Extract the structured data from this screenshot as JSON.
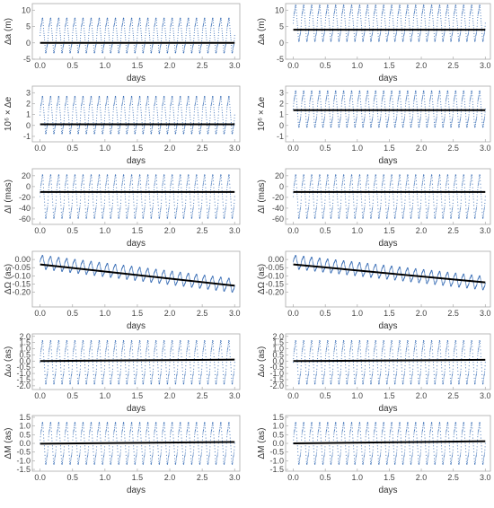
{
  "figure": {
    "description_colors": {
      "series": "#3b6fb6",
      "trend": "#000000",
      "frame": "#aaaaaa",
      "text": "#444444"
    }
  },
  "chart_data": [
    {
      "type": "scatter",
      "panel": "a-left",
      "xlabel": "days",
      "ylabel": "Δa (m)",
      "xlim": [
        -0.12,
        3.08
      ],
      "ylim": [
        -5,
        12
      ],
      "xticks": [
        "0.0",
        "0.5",
        "1.0",
        "1.5",
        "2.0",
        "2.5",
        "3.0"
      ],
      "yticks": [
        -5,
        0,
        5,
        10
      ],
      "osc": {
        "min": -3.5,
        "max": 8.0,
        "cycles": 24
      },
      "trend": {
        "x": [
          0.0,
          3.0
        ],
        "y": [
          0.0,
          0.0
        ]
      }
    },
    {
      "type": "scatter",
      "panel": "a-right",
      "xlabel": "days",
      "ylabel": "Δa (m)",
      "xlim": [
        -0.12,
        3.08
      ],
      "ylim": [
        -5,
        12
      ],
      "xticks": [
        "0.0",
        "0.5",
        "1.0",
        "1.5",
        "2.0",
        "2.5",
        "3.0"
      ],
      "yticks": [
        -5,
        0,
        5,
        10
      ],
      "osc": {
        "min": 0.0,
        "max": 12.0,
        "cycles": 24
      },
      "trend": {
        "x": [
          0.0,
          3.0
        ],
        "y": [
          4.0,
          4.0
        ]
      }
    },
    {
      "type": "scatter",
      "panel": "e-left",
      "xlabel": "days",
      "ylabel": "10⁶ × Δe",
      "xlim": [
        -0.12,
        3.08
      ],
      "ylim": [
        -1.5,
        3.6
      ],
      "xticks": [
        "0.0",
        "0.5",
        "1.0",
        "1.5",
        "2.0",
        "2.5",
        "3.0"
      ],
      "yticks": [
        -1,
        0,
        1,
        2,
        3
      ],
      "osc": {
        "min": -0.9,
        "max": 2.8,
        "cycles": 24
      },
      "trend": {
        "x": [
          0.0,
          3.0
        ],
        "y": [
          0.1,
          0.1
        ]
      }
    },
    {
      "type": "scatter",
      "panel": "e-right",
      "xlabel": "days",
      "ylabel": "10⁶ × Δe",
      "xlim": [
        -0.12,
        3.08
      ],
      "ylim": [
        -1.5,
        3.6
      ],
      "xticks": [
        "0.0",
        "0.5",
        "1.0",
        "1.5",
        "2.0",
        "2.5",
        "3.0"
      ],
      "yticks": [
        -1,
        0,
        1,
        2,
        3
      ],
      "osc": {
        "min": -0.3,
        "max": 3.3,
        "cycles": 24
      },
      "trend": {
        "x": [
          0.0,
          3.0
        ],
        "y": [
          1.4,
          1.4
        ]
      }
    },
    {
      "type": "scatter",
      "panel": "I-left",
      "xlabel": "days",
      "ylabel": "ΔI (mas)",
      "xlim": [
        -0.12,
        3.08
      ],
      "ylim": [
        -70,
        33
      ],
      "xticks": [
        "0.0",
        "0.5",
        "1.0",
        "1.5",
        "2.0",
        "2.5",
        "3.0"
      ],
      "yticks": [
        -60,
        -40,
        -20,
        0,
        20
      ],
      "osc": {
        "min": -62,
        "max": 25,
        "cycles": 24
      },
      "trend": {
        "x": [
          0.0,
          3.0
        ],
        "y": [
          -10,
          -10
        ]
      }
    },
    {
      "type": "scatter",
      "panel": "I-right",
      "xlabel": "days",
      "ylabel": "ΔI (mas)",
      "xlim": [
        -0.12,
        3.08
      ],
      "ylim": [
        -70,
        33
      ],
      "xticks": [
        "0.0",
        "0.5",
        "1.0",
        "1.5",
        "2.0",
        "2.5",
        "3.0"
      ],
      "yticks": [
        -60,
        -40,
        -20,
        0,
        20
      ],
      "osc": {
        "min": -62,
        "max": 25,
        "cycles": 24
      },
      "trend": {
        "x": [
          0.0,
          3.0
        ],
        "y": [
          -10,
          -10
        ]
      }
    },
    {
      "type": "scatter",
      "panel": "Omega-left",
      "xlabel": "days",
      "ylabel": "ΔΩ (as)",
      "xlim": [
        -0.12,
        3.08
      ],
      "ylim": [
        -0.29,
        0.05
      ],
      "xticks": [
        "0.0",
        "0.5",
        "1.0",
        "1.5",
        "2.0",
        "2.5",
        "3.0"
      ],
      "yticks": [
        "0.00",
        "-0.05",
        "-0.10",
        "-0.15",
        "-0.20"
      ],
      "ytickvals": [
        0.0,
        -0.05,
        -0.1,
        -0.15,
        -0.2
      ],
      "osc": {
        "min": -0.06,
        "max": 0.03,
        "cycles": 24,
        "drift": -0.145
      },
      "trend": {
        "x": [
          0.0,
          3.0
        ],
        "y": [
          -0.03,
          -0.16
        ]
      }
    },
    {
      "type": "scatter",
      "panel": "Omega-right",
      "xlabel": "days",
      "ylabel": "ΔΩ (as)",
      "xlim": [
        -0.12,
        3.08
      ],
      "ylim": [
        -0.29,
        0.05
      ],
      "xticks": [
        "0.0",
        "0.5",
        "1.0",
        "1.5",
        "2.0",
        "2.5",
        "3.0"
      ],
      "yticks": [
        "0.00",
        "-0.05",
        "-0.10",
        "-0.15",
        "-0.20"
      ],
      "ytickvals": [
        0.0,
        -0.05,
        -0.1,
        -0.15,
        -0.2
      ],
      "osc": {
        "min": -0.06,
        "max": 0.03,
        "cycles": 24,
        "drift": -0.13
      },
      "trend": {
        "x": [
          0.0,
          3.0
        ],
        "y": [
          -0.03,
          -0.14
        ]
      }
    },
    {
      "type": "scatter",
      "panel": "omega-left",
      "xlabel": "days",
      "ylabel": "Δω (as)",
      "xlim": [
        -0.12,
        3.08
      ],
      "ylim": [
        -2.3,
        2.2
      ],
      "xticks": [
        "0.0",
        "0.5",
        "1.0",
        "1.5",
        "2.0",
        "2.5",
        "3.0"
      ],
      "yticks": [
        "-2.0",
        "-1.5",
        "-1.0",
        "-0.5",
        "0.0",
        "0.5",
        "1.0",
        "1.5",
        "2.0"
      ],
      "ytickvals": [
        -2.0,
        -1.5,
        -1.0,
        -0.5,
        0.0,
        0.5,
        1.0,
        1.5,
        2.0
      ],
      "osc": {
        "min": -2.0,
        "max": 1.8,
        "cycles": 24
      },
      "trend": {
        "x": [
          0.0,
          3.0
        ],
        "y": [
          0.0,
          0.12
        ]
      }
    },
    {
      "type": "scatter",
      "panel": "omega-right",
      "xlabel": "days",
      "ylabel": "Δω (as)",
      "xlim": [
        -0.12,
        3.08
      ],
      "ylim": [
        -2.3,
        2.2
      ],
      "xticks": [
        "0.0",
        "0.5",
        "1.0",
        "1.5",
        "2.0",
        "2.5",
        "3.0"
      ],
      "yticks": [
        "-2.0",
        "-1.5",
        "-1.0",
        "-0.5",
        "0.0",
        "0.5",
        "1.0",
        "1.5",
        "2.0"
      ],
      "ytickvals": [
        -2.0,
        -1.5,
        -1.0,
        -0.5,
        0.0,
        0.5,
        1.0,
        1.5,
        2.0
      ],
      "osc": {
        "min": -2.0,
        "max": 1.8,
        "cycles": 24
      },
      "trend": {
        "x": [
          0.0,
          3.0
        ],
        "y": [
          0.0,
          0.1
        ]
      }
    },
    {
      "type": "scatter",
      "panel": "M-left",
      "xlabel": "days",
      "ylabel": "ΔM (as)",
      "xlim": [
        -0.12,
        3.08
      ],
      "ylim": [
        -1.6,
        1.6
      ],
      "xticks": [
        "0.0",
        "0.5",
        "1.0",
        "1.5",
        "2.0",
        "2.5",
        "3.0"
      ],
      "yticks": [
        "-1.5",
        "-1.0",
        "-0.5",
        "0.0",
        "0.5",
        "1.0",
        "1.5"
      ],
      "ytickvals": [
        -1.5,
        -1.0,
        -0.5,
        0.0,
        0.5,
        1.0,
        1.5
      ],
      "osc": {
        "min": -1.3,
        "max": 1.3,
        "cycles": 24
      },
      "trend": {
        "x": [
          0.0,
          3.0
        ],
        "y": [
          -0.02,
          0.08
        ]
      }
    },
    {
      "type": "scatter",
      "panel": "M-right",
      "xlabel": "days",
      "ylabel": "ΔM (as)",
      "xlim": [
        -0.12,
        3.08
      ],
      "ylim": [
        -1.6,
        1.6
      ],
      "xticks": [
        "0.0",
        "0.5",
        "1.0",
        "1.5",
        "2.0",
        "2.5",
        "3.0"
      ],
      "yticks": [
        "-1.5",
        "-1.0",
        "-0.5",
        "0.0",
        "0.5",
        "1.0",
        "1.5"
      ],
      "ytickvals": [
        -1.5,
        -1.0,
        -0.5,
        0.0,
        0.5,
        1.0,
        1.5
      ],
      "osc": {
        "min": -1.3,
        "max": 1.3,
        "cycles": 24
      },
      "trend": {
        "x": [
          0.0,
          3.0
        ],
        "y": [
          0.0,
          0.12
        ]
      }
    }
  ]
}
